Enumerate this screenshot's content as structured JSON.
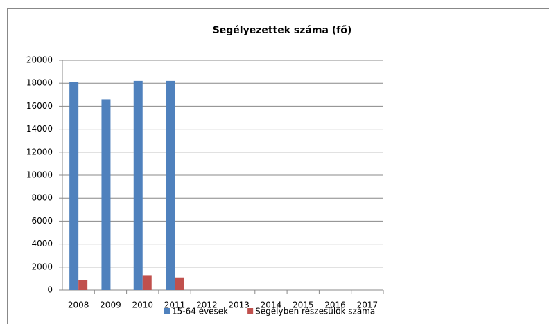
{
  "chart_data": {
    "type": "bar",
    "title": "Segélyezettek száma (fő)",
    "categories": [
      "2008",
      "2009",
      "2010",
      "2011",
      "2012",
      "2013",
      "2014",
      "2015",
      "2016",
      "2017"
    ],
    "series": [
      {
        "name": "15-64 évesek",
        "color": "#4f81bd",
        "values": [
          18100,
          16600,
          18200,
          18200,
          null,
          null,
          null,
          null,
          null,
          null
        ]
      },
      {
        "name": "Segélyben részesülők száma",
        "color": "#c0504d",
        "values": [
          900,
          null,
          1300,
          1100,
          null,
          null,
          null,
          null,
          null,
          null
        ]
      }
    ],
    "ylim": [
      0,
      20000
    ],
    "yticks": [
      0,
      2000,
      4000,
      6000,
      8000,
      10000,
      12000,
      14000,
      16000,
      18000,
      20000
    ],
    "grid": true,
    "legend": "bottom"
  }
}
